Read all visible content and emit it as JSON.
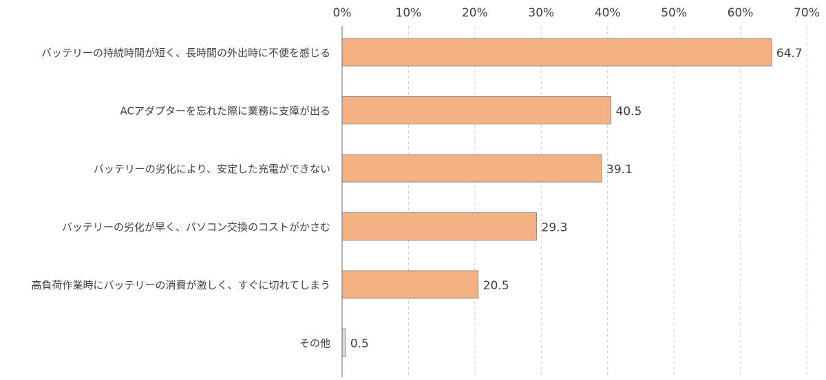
{
  "chart_data": {
    "type": "bar",
    "orientation": "horizontal",
    "categories": [
      "バッテリーの持続時間が短く、長時間の外出時に不便を感じる",
      "ACアダプターを忘れた際に業務に支障が出る",
      "バッテリーの劣化により、安定した充電ができない",
      "バッテリーの劣化が早く、パソコン交換のコストがかさむ",
      "高負荷作業時にバッテリーの消費が激しく、すぐに切れてしまう",
      "その他"
    ],
    "values": [
      64.7,
      40.5,
      39.1,
      29.3,
      20.5,
      0.5
    ],
    "data_labels": [
      "64.7",
      "40.5",
      "39.1",
      "29.3",
      "20.5",
      "0.5"
    ],
    "xlim": [
      0,
      70
    ],
    "x_ticks": [
      "0%",
      "10%",
      "20%",
      "30%",
      "40%",
      "50%",
      "60%",
      "70%"
    ],
    "x_axis_position": "top",
    "grid": true,
    "grid_style": "dashed vertical",
    "colors": {
      "bar_fill": "#F4B183",
      "bar_stroke": "#8E8E8E",
      "other_bar_fill": "#D9D9D9",
      "grid": "#CFCFCF",
      "axis": "#7F7F7F",
      "text": "#404040"
    }
  }
}
